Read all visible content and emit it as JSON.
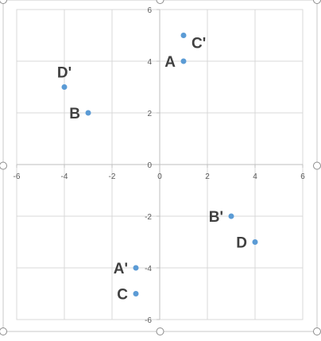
{
  "chart_data": {
    "type": "scatter",
    "title": "",
    "xlabel": "",
    "ylabel": "",
    "xlim": [
      -6,
      6
    ],
    "ylim": [
      -6,
      6
    ],
    "x_ticks": [
      -6,
      -4,
      -2,
      0,
      2,
      4,
      6
    ],
    "y_ticks": [
      -6,
      -4,
      -2,
      0,
      2,
      4,
      6
    ],
    "x_tick_labels": [
      "-6",
      "-4",
      "-2",
      "0",
      "2",
      "4",
      "6"
    ],
    "y_tick_labels": [
      "-6",
      "-4",
      "-2",
      "0",
      "2",
      "4",
      "6"
    ],
    "grid": true,
    "legend": "none",
    "marker_color": "#5B9BD5",
    "gridline_color": "#D9D9D9",
    "axis_color": "#BFBFBF",
    "tick_label_color": "#595959",
    "point_label_color": "#404040",
    "points": [
      {
        "label": "A",
        "x": 1,
        "y": 4,
        "label_side": "left"
      },
      {
        "label": "C'",
        "x": 1,
        "y": 5,
        "label_side": "right"
      },
      {
        "label": "D'",
        "x": -4,
        "y": 3,
        "label_side": "above"
      },
      {
        "label": "B",
        "x": -3,
        "y": 2,
        "label_side": "left"
      },
      {
        "label": "B'",
        "x": 3,
        "y": -2,
        "label_side": "left"
      },
      {
        "label": "D",
        "x": 4,
        "y": -3,
        "label_side": "left"
      },
      {
        "label": "A'",
        "x": -1,
        "y": -4,
        "label_side": "left"
      },
      {
        "label": "C",
        "x": -1,
        "y": -5,
        "label_side": "left"
      }
    ]
  }
}
